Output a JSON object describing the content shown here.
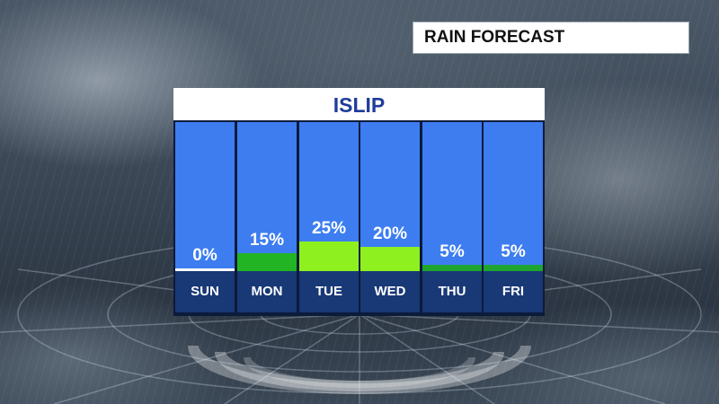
{
  "title": "RAIN FORECAST",
  "location": "ISLIP",
  "chart_data": {
    "type": "bar",
    "title": "ISLIP",
    "categories": [
      "SUN",
      "MON",
      "TUE",
      "WED",
      "THU",
      "FRI"
    ],
    "values": [
      0,
      15,
      25,
      20,
      5,
      5
    ],
    "labels": [
      "0%",
      "15%",
      "25%",
      "20%",
      "5%",
      "5%"
    ],
    "colors": [
      "#ffffff",
      "#22b422",
      "#8ef11f",
      "#8ef11f",
      "#1fa52f",
      "#1fa52f"
    ],
    "ylim": [
      0,
      100
    ],
    "panel_color": "#3d7df0",
    "day_strip_color": "#183876"
  }
}
